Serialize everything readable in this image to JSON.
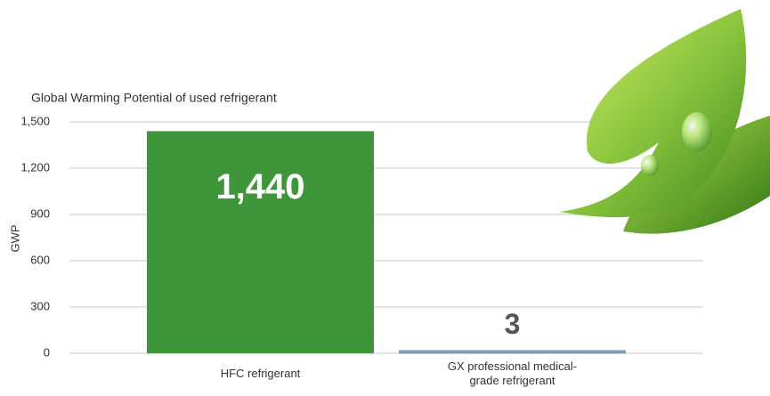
{
  "chart_data": {
    "type": "bar",
    "title": "Global Warming Potential of used refrigerant",
    "y_label": "GWP",
    "categories": [
      "HFC refrigerant",
      "GX professional medical-grade refrigerant"
    ],
    "values": [
      1440,
      3
    ],
    "value_labels": [
      "1,440",
      "3"
    ],
    "colors": [
      "#3f963a",
      "#7f9bb0"
    ],
    "ylim": [
      0,
      1500
    ],
    "yticks": [
      0,
      300,
      600,
      900,
      {
        "value": 1200,
        "label": "1,200"
      },
      {
        "value": 1500,
        "label": "1,500"
      }
    ],
    "grid": true
  }
}
